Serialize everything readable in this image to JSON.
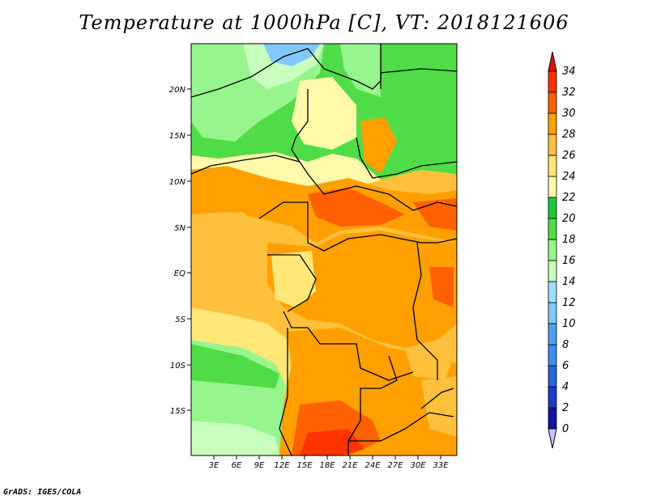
{
  "title": "Temperature at 1000hPa [C], VT: 2018121606",
  "credit": "GrADS: IGES/COLA",
  "map": {
    "lat_labels": [
      "20N",
      "15N",
      "10N",
      "5N",
      "EQ",
      "5S",
      "10S",
      "15S"
    ],
    "lon_labels": [
      "3E",
      "6E",
      "9E",
      "12E",
      "15E",
      "18E",
      "21E",
      "24E",
      "27E",
      "30E",
      "33E"
    ]
  },
  "colorbar": {
    "labels": [
      "34",
      "32",
      "30",
      "28",
      "26",
      "24",
      "22",
      "20",
      "18",
      "16",
      "14",
      "12",
      "10",
      "8",
      "6",
      "4",
      "2",
      "0"
    ],
    "colors": [
      "#c8c8ff",
      "#1414a0",
      "#1e3cc8",
      "#2864dc",
      "#3c8cf0",
      "#50a0f0",
      "#82c8ff",
      "#a0dcff",
      "#c8ffbe",
      "#96f58c",
      "#50dc46",
      "#1ec83c",
      "#fffaaa",
      "#ffe878",
      "#ffc03c",
      "#ffa000",
      "#ff6000",
      "#ff3200",
      "#e11400"
    ]
  }
}
